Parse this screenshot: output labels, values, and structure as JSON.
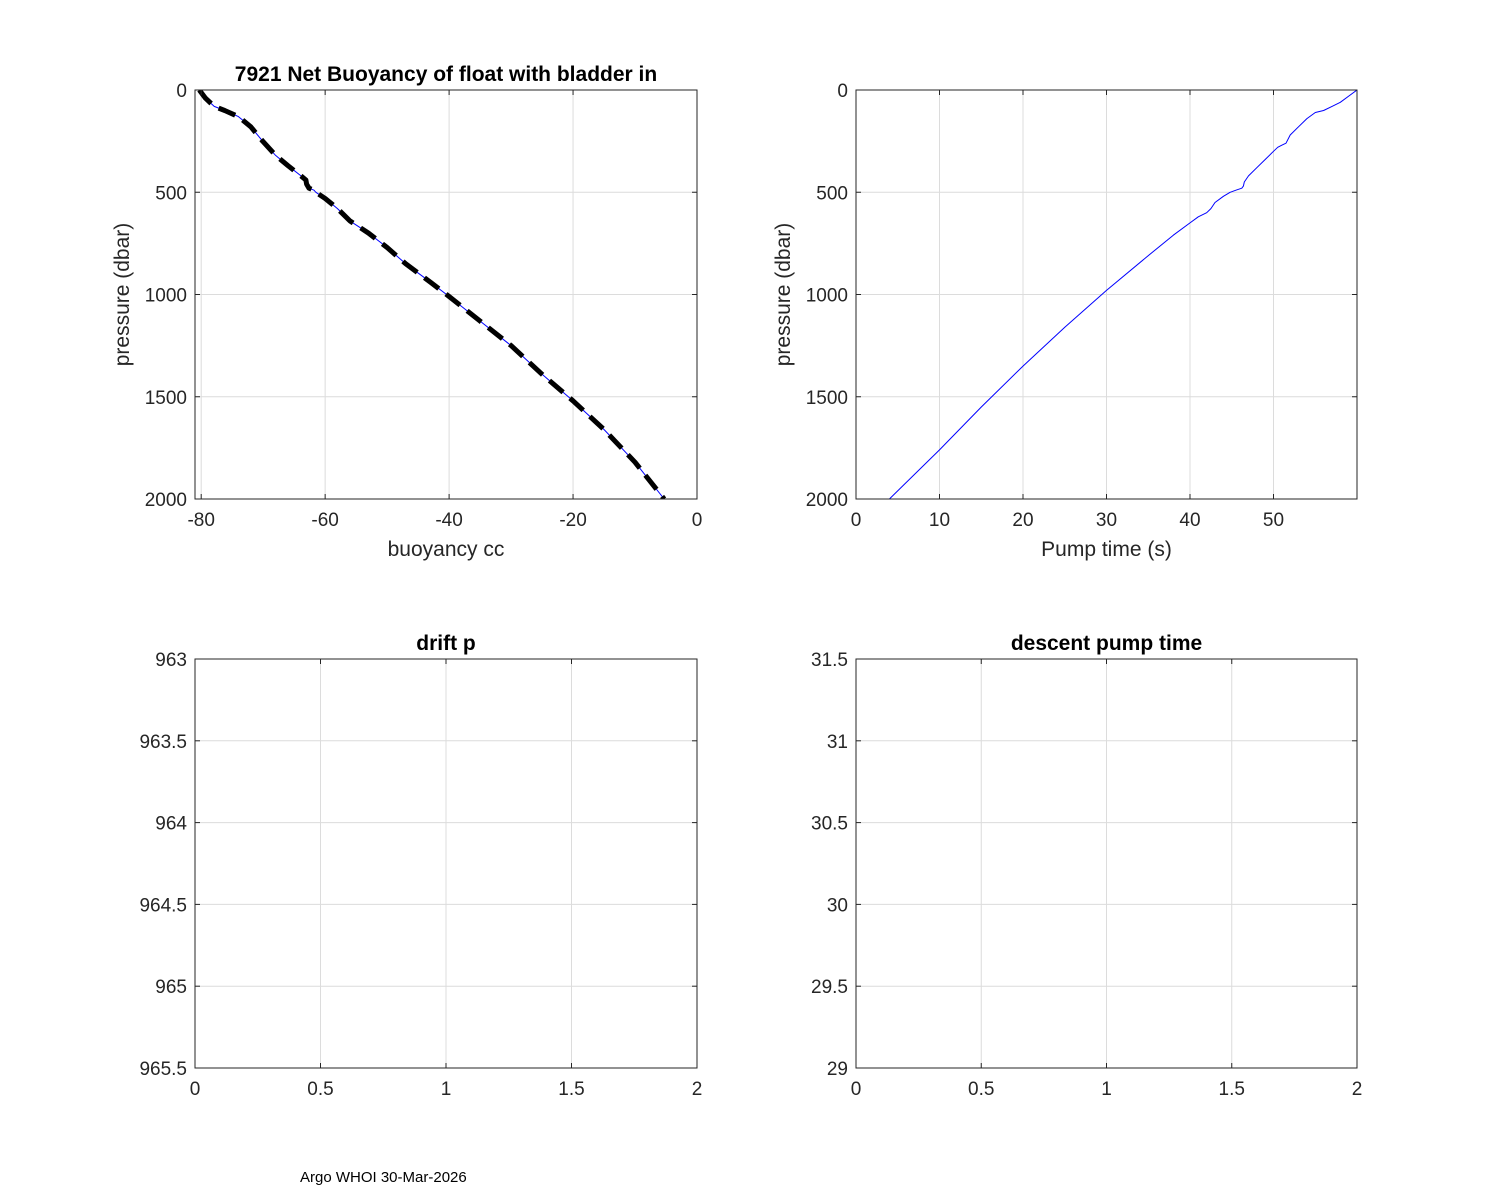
{
  "footer": "Argo WHOI 30-Mar-2026",
  "colors": {
    "axes": "#262626",
    "grid": "#dcdcdc",
    "line": "#0000ff",
    "fit": "#000000"
  },
  "chart_data": [
    {
      "id": "buoyancy",
      "type": "line",
      "title": "7921 Net Buoyancy of float with bladder in",
      "xlabel": "buoyancy cc",
      "ylabel": "pressure (dbar)",
      "xlim": [
        -81,
        0
      ],
      "ylim": [
        0,
        2000
      ],
      "y_reversed": true,
      "grid": true,
      "xticks": [
        -80,
        -60,
        -40,
        -20,
        0
      ],
      "yticks": [
        0,
        500,
        1000,
        1500,
        2000
      ],
      "series": [
        {
          "style": "thin-blue",
          "x": [
            -80.3,
            -79.3,
            -77.9,
            -76.2,
            -74.0,
            -72.0,
            -70.1,
            -68.0,
            -66.0,
            -63.9,
            -63.1,
            -63.0,
            -62.6,
            -61.8,
            -61.5,
            -60.0,
            -58.0,
            -56.0,
            -53.0,
            -50.0,
            -47.0,
            -43.0,
            -40.0,
            -35.0,
            -30.0,
            -25.0,
            -20.0,
            -15.0,
            -10.0,
            -5.3
          ],
          "y": [
            0,
            40,
            80,
            100,
            130,
            180,
            250,
            320,
            370,
            420,
            440,
            460,
            480,
            490,
            500,
            530,
            580,
            640,
            700,
            770,
            850,
            940,
            1010,
            1130,
            1250,
            1390,
            1520,
            1660,
            1820,
            2000
          ]
        },
        {
          "style": "thick-dashed-black",
          "x": [
            -80.3,
            -79.3,
            -77.9,
            -76.2,
            -74.0,
            -72.0,
            -70.1,
            -68.0,
            -66.0,
            -63.9,
            -63.1,
            -63.0,
            -62.6,
            -61.8,
            -61.5,
            -60.0,
            -58.0,
            -56.0,
            -53.0,
            -50.0,
            -47.0,
            -43.0,
            -40.0,
            -35.0,
            -30.0,
            -25.0,
            -20.0,
            -15.0,
            -10.0,
            -5.3
          ],
          "y": [
            0,
            40,
            80,
            100,
            130,
            180,
            250,
            320,
            370,
            420,
            440,
            460,
            480,
            490,
            500,
            530,
            580,
            640,
            700,
            770,
            850,
            940,
            1010,
            1130,
            1250,
            1390,
            1520,
            1660,
            1820,
            2000
          ]
        }
      ]
    },
    {
      "id": "pumptime",
      "type": "line",
      "title": "",
      "xlabel": "Pump time (s)",
      "ylabel": "pressure (dbar)",
      "xlim": [
        0,
        60
      ],
      "ylim": [
        0,
        2000
      ],
      "y_reversed": true,
      "grid": true,
      "xticks": [
        0,
        10,
        20,
        30,
        40,
        50
      ],
      "yticks": [
        0,
        500,
        1000,
        1500,
        2000
      ],
      "series": [
        {
          "style": "thin-blue",
          "x": [
            60.0,
            59.0,
            58.0,
            57.0,
            56.0,
            55.0,
            54.0,
            53.0,
            52.0,
            51.5,
            51.0,
            50.5,
            50.0,
            49.0,
            48.0,
            47.0,
            46.5,
            46.4,
            46.2,
            45.5,
            44.8,
            44.0,
            43.0,
            42.5,
            42.0,
            41.0,
            40.0,
            38.0,
            35.0,
            30.0,
            25.0,
            20.0,
            15.0,
            10.0,
            4.0
          ],
          "y": [
            0,
            30,
            60,
            80,
            100,
            110,
            140,
            180,
            220,
            260,
            270,
            280,
            300,
            340,
            380,
            420,
            450,
            470,
            480,
            490,
            500,
            520,
            550,
            580,
            600,
            620,
            650,
            710,
            810,
            980,
            1160,
            1350,
            1550,
            1760,
            2000
          ]
        }
      ]
    },
    {
      "id": "driftp",
      "type": "line",
      "title": "drift p",
      "xlabel": "",
      "ylabel": "",
      "xlim": [
        0,
        2
      ],
      "ylim": [
        963,
        965.5
      ],
      "y_reversed": true,
      "grid": true,
      "xticks": [
        0,
        0.5,
        1,
        1.5,
        2
      ],
      "yticks": [
        963,
        963.5,
        964,
        964.5,
        965,
        965.5
      ],
      "series": []
    },
    {
      "id": "descentpump",
      "type": "line",
      "title": "descent pump time",
      "xlabel": "",
      "ylabel": "",
      "xlim": [
        0,
        2
      ],
      "ylim": [
        29,
        31.5
      ],
      "y_reversed": false,
      "grid": true,
      "xticks": [
        0,
        0.5,
        1,
        1.5,
        2
      ],
      "yticks": [
        29,
        29.5,
        30,
        30.5,
        31,
        31.5
      ],
      "series": []
    }
  ]
}
